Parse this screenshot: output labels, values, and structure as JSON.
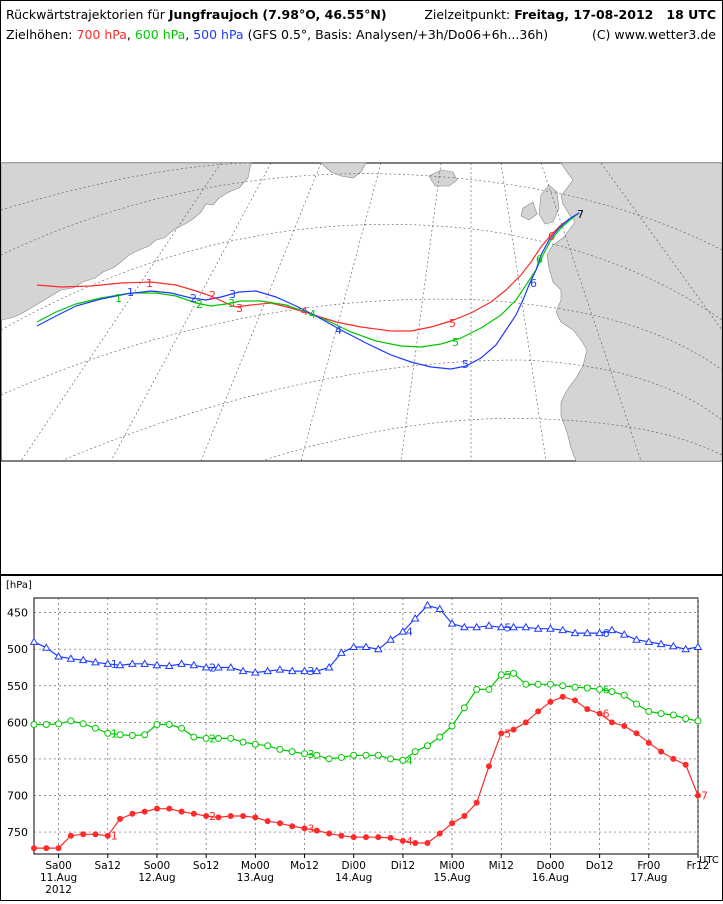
{
  "header": {
    "title_prefix": "Rückwärtstrajektorien für ",
    "station": "Jungfraujoch",
    "coords": "(7.98°O, 46.55°N)",
    "target_label": "Zielzeitpunkt:",
    "target_time": "Freitag, 17-08-2012   18 UTC",
    "levels_label": "Zielhöhen:",
    "level_700": "700 hPa",
    "level_600": "600 hPa",
    "level_500": "500 hPa",
    "model_info": "(GFS 0.5°, Basis: Analysen/+3h/Do06+6h...36h)",
    "copyright": "(C) www.wetter3.de"
  },
  "colors": {
    "p700": "#ff2a2a",
    "p600": "#00c800",
    "p500": "#1e3cff",
    "land": "#d4d4d4",
    "grid": "#555555"
  },
  "map": {
    "day_labels_700": [
      "1",
      "2",
      "3",
      "4",
      "5",
      "6",
      "7"
    ],
    "day_labels_600": [
      "1",
      "2",
      "3",
      "4",
      "5",
      "6"
    ],
    "day_labels_500": [
      "1",
      "2",
      "3",
      "4",
      "5",
      "6"
    ]
  },
  "chart_data": {
    "type": "line",
    "ylabel": "[hPa]",
    "xunit": "UTC",
    "yticks": [
      450,
      500,
      550,
      600,
      650,
      700,
      750
    ],
    "ylim": [
      780,
      430
    ],
    "xticks": [
      {
        "label": "Sa00",
        "sub": "11.Aug",
        "sub2": "2012"
      },
      {
        "label": "Sa12",
        "sub": "",
        "sub2": ""
      },
      {
        "label": "So00",
        "sub": "12.Aug",
        "sub2": ""
      },
      {
        "label": "So12",
        "sub": "",
        "sub2": ""
      },
      {
        "label": "Mo00",
        "sub": "13.Aug",
        "sub2": ""
      },
      {
        "label": "Mo12",
        "sub": "",
        "sub2": ""
      },
      {
        "label": "Di00",
        "sub": "14.Aug",
        "sub2": ""
      },
      {
        "label": "Di12",
        "sub": "",
        "sub2": ""
      },
      {
        "label": "Mi00",
        "sub": "15.Aug",
        "sub2": ""
      },
      {
        "label": "Mi12",
        "sub": "",
        "sub2": ""
      },
      {
        "label": "Do00",
        "sub": "16.Aug",
        "sub2": ""
      },
      {
        "label": "Do12",
        "sub": "",
        "sub2": ""
      },
      {
        "label": "Fr00",
        "sub": "17.Aug",
        "sub2": ""
      },
      {
        "label": "Fr12",
        "sub": "",
        "sub2": ""
      }
    ],
    "x_hours_start": -6,
    "x_hours_end": 156,
    "series": [
      {
        "name": "700 hPa",
        "color": "#ff2a2a",
        "marker": "dot",
        "hours": [
          -6,
          -3,
          0,
          3,
          6,
          9,
          12,
          15,
          18,
          21,
          24,
          27,
          30,
          33,
          36,
          39,
          42,
          45,
          48,
          51,
          54,
          57,
          60,
          63,
          66,
          69,
          72,
          75,
          78,
          81,
          84,
          87,
          90,
          93,
          96,
          99,
          102,
          105,
          108,
          111,
          114,
          117,
          120,
          123,
          126,
          129,
          132,
          135,
          138,
          141,
          144,
          147,
          150,
          153,
          156
        ],
        "values": [
          772,
          772,
          772,
          755,
          753,
          753,
          755,
          732,
          725,
          722,
          718,
          718,
          722,
          725,
          728,
          730,
          728,
          728,
          730,
          735,
          738,
          742,
          745,
          748,
          752,
          755,
          757,
          757,
          757,
          758,
          762,
          765,
          765,
          752,
          738,
          728,
          710,
          660,
          615,
          610,
          600,
          585,
          572,
          565,
          570,
          582,
          588,
          600,
          605,
          615,
          628,
          640,
          650,
          658,
          700
        ],
        "day_label_hours": [
          12,
          36,
          60,
          84,
          108,
          132,
          156
        ]
      },
      {
        "name": "600 hPa",
        "color": "#00c800",
        "marker": "circle",
        "hours": [
          -6,
          -3,
          0,
          3,
          6,
          9,
          12,
          15,
          18,
          21,
          24,
          27,
          30,
          33,
          36,
          39,
          42,
          45,
          48,
          51,
          54,
          57,
          60,
          63,
          66,
          69,
          72,
          75,
          78,
          81,
          84,
          87,
          90,
          93,
          96,
          99,
          102,
          105,
          108,
          111,
          114,
          117,
          120,
          123,
          126,
          129,
          132,
          135,
          138,
          141,
          144,
          147,
          150,
          153,
          156
        ],
        "values": [
          603,
          603,
          602,
          598,
          602,
          608,
          615,
          617,
          618,
          617,
          603,
          603,
          608,
          620,
          622,
          622,
          622,
          627,
          630,
          632,
          637,
          640,
          643,
          645,
          650,
          648,
          645,
          645,
          645,
          650,
          652,
          640,
          632,
          620,
          605,
          580,
          555,
          555,
          535,
          533,
          548,
          548,
          548,
          550,
          552,
          553,
          555,
          558,
          563,
          575,
          585,
          588,
          590,
          595,
          598
        ],
        "day_label_hours": [
          12,
          36,
          60,
          84,
          108,
          132
        ]
      },
      {
        "name": "500 hPa",
        "color": "#1e3cff",
        "marker": "triangle",
        "hours": [
          -6,
          -3,
          0,
          3,
          6,
          9,
          12,
          15,
          18,
          21,
          24,
          27,
          30,
          33,
          36,
          39,
          42,
          45,
          48,
          51,
          54,
          57,
          60,
          63,
          66,
          69,
          72,
          75,
          78,
          81,
          84,
          87,
          90,
          93,
          96,
          99,
          102,
          105,
          108,
          111,
          114,
          117,
          120,
          123,
          126,
          129,
          132,
          135,
          138,
          141,
          144,
          147,
          150,
          153,
          156
        ],
        "values": [
          490,
          498,
          510,
          513,
          515,
          518,
          520,
          522,
          520,
          520,
          522,
          523,
          520,
          522,
          525,
          525,
          525,
          530,
          532,
          530,
          528,
          530,
          530,
          530,
          525,
          505,
          497,
          497,
          500,
          487,
          476,
          458,
          440,
          445,
          465,
          470,
          470,
          468,
          470,
          470,
          470,
          472,
          472,
          474,
          478,
          478,
          478,
          474,
          480,
          487,
          490,
          493,
          496,
          500,
          497
        ],
        "day_label_hours": [
          12,
          36,
          60,
          84,
          108,
          132
        ]
      }
    ]
  }
}
